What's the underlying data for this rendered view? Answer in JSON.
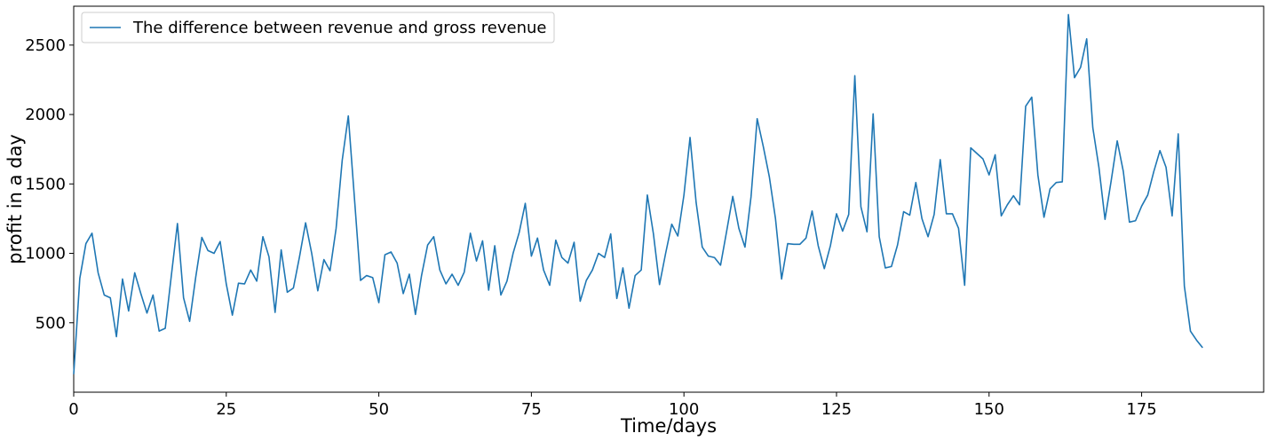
{
  "chart_data": {
    "type": "line",
    "title": "",
    "xlabel": "Time/days",
    "ylabel": "profit in a day",
    "xlim": [
      0,
      195
    ],
    "ylim": [
      0,
      2780
    ],
    "xticks": [
      0,
      25,
      50,
      75,
      100,
      125,
      150,
      175
    ],
    "yticks": [
      500,
      1000,
      1500,
      2000,
      2500
    ],
    "grid": false,
    "legend_position": "top-left",
    "color": "#1f77b4",
    "series": [
      {
        "name": "The difference between revenue and gross revenue",
        "x": [
          0,
          1,
          2,
          3,
          4,
          5,
          6,
          7,
          8,
          9,
          10,
          11,
          12,
          13,
          14,
          15,
          16,
          17,
          18,
          19,
          20,
          21,
          22,
          23,
          24,
          25,
          26,
          27,
          28,
          29,
          30,
          31,
          32,
          33,
          34,
          35,
          36,
          37,
          38,
          39,
          40,
          41,
          42,
          43,
          44,
          45,
          46,
          47,
          48,
          49,
          50,
          51,
          52,
          53,
          54,
          55,
          56,
          57,
          58,
          59,
          60,
          61,
          62,
          63,
          64,
          65,
          66,
          67,
          68,
          69,
          70,
          71,
          72,
          73,
          74,
          75,
          76,
          77,
          78,
          79,
          80,
          81,
          82,
          83,
          84,
          85,
          86,
          87,
          88,
          89,
          90,
          91,
          92,
          93,
          94,
          95,
          96,
          97,
          98,
          99,
          100,
          101,
          102,
          103,
          104,
          105,
          106,
          107,
          108,
          109,
          110,
          111,
          112,
          113,
          114,
          115,
          116,
          117,
          118,
          119,
          120,
          121,
          122,
          123,
          124,
          125,
          126,
          127,
          128,
          129,
          130,
          131,
          132,
          133,
          134,
          135,
          136,
          137,
          138,
          139,
          140,
          141,
          142,
          143,
          144,
          145,
          146,
          147,
          148,
          149,
          150,
          151,
          152,
          153,
          154,
          155,
          156,
          157,
          158,
          159,
          160,
          161,
          162,
          163,
          164,
          165,
          166,
          167,
          168,
          169,
          170,
          171,
          172,
          173,
          174,
          175,
          176,
          177,
          178,
          179,
          180,
          181,
          182,
          183,
          184,
          185
        ],
        "values": [
          130,
          820,
          1070,
          1145,
          860,
          700,
          680,
          400,
          815,
          585,
          860,
          710,
          570,
          700,
          440,
          460,
          840,
          1215,
          680,
          510,
          830,
          1115,
          1020,
          1000,
          1085,
          780,
          555,
          785,
          780,
          880,
          800,
          1120,
          975,
          575,
          1025,
          720,
          750,
          975,
          1220,
          1000,
          730,
          955,
          875,
          1180,
          1670,
          1990,
          1400,
          805,
          840,
          825,
          645,
          990,
          1010,
          930,
          710,
          850,
          560,
          840,
          1060,
          1120,
          880,
          780,
          850,
          770,
          865,
          1145,
          945,
          1090,
          735,
          1055,
          700,
          800,
          1000,
          1150,
          1360,
          980,
          1110,
          880,
          770,
          1095,
          970,
          930,
          1080,
          655,
          805,
          880,
          1000,
          970,
          1140,
          675,
          895,
          605,
          840,
          880,
          1420,
          1140,
          775,
          1000,
          1210,
          1125,
          1420,
          1835,
          1365,
          1045,
          980,
          970,
          915,
          1160,
          1410,
          1180,
          1045,
          1410,
          1970,
          1770,
          1550,
          1250,
          815,
          1070,
          1065,
          1065,
          1110,
          1305,
          1055,
          890,
          1055,
          1285,
          1160,
          1280,
          2280,
          1335,
          1155,
          2005,
          1120,
          895,
          905,
          1060,
          1300,
          1275,
          1510,
          1250,
          1120,
          1280,
          1675,
          1285,
          1285,
          1180,
          770,
          1760,
          1720,
          1680,
          1565,
          1710,
          1270,
          1350,
          1415,
          1350,
          2060,
          2125,
          1565,
          1260,
          1465,
          1510,
          1515,
          2720,
          2265,
          2340,
          2545,
          1905,
          1620,
          1245,
          1520,
          1810,
          1590,
          1225,
          1235,
          1340,
          1420,
          1590,
          1740,
          1620,
          1270,
          1860,
          765,
          440,
          375,
          320
        ]
      }
    ]
  }
}
